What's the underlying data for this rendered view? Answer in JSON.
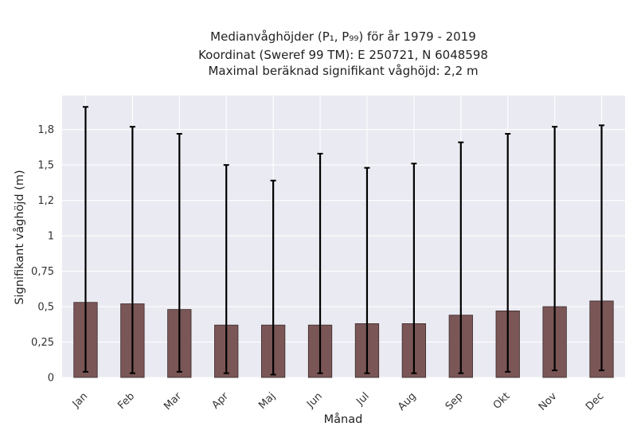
{
  "chart_data": {
    "type": "bar",
    "title_lines": [
      "Medianvåghöjder (P₁, P₉₉) för år 1979 - 2019",
      "Koordinat (Sweref 99 TM): E 250721, N 6048598",
      "Maximal beräknad signifikant våghöjd: 2,2 m"
    ],
    "xlabel": "Månad",
    "ylabel": "Signifikant våghöjd (m)",
    "categories": [
      "Jan",
      "Feb",
      "Mar",
      "Apr",
      "Maj",
      "Jun",
      "Jul",
      "Aug",
      "Sep",
      "Okt",
      "Nov",
      "Dec"
    ],
    "series": [
      {
        "values": [
          0.53,
          0.52,
          0.48,
          0.37,
          0.37,
          0.37,
          0.38,
          0.38,
          0.44,
          0.47,
          0.5,
          0.54
        ],
        "error_low": [
          0.04,
          0.03,
          0.04,
          0.03,
          0.02,
          0.03,
          0.03,
          0.03,
          0.03,
          0.04,
          0.05,
          0.05
        ],
        "error_high": [
          1.91,
          1.77,
          1.72,
          1.5,
          1.39,
          1.58,
          1.48,
          1.51,
          1.66,
          1.72,
          1.77,
          1.78
        ]
      }
    ],
    "yticks": [
      0,
      0.25,
      0.5,
      0.75,
      1,
      1.25,
      1.5,
      1.75
    ],
    "ytick_labels": [
      "0",
      "0,25",
      "0,5",
      "0,75",
      "1",
      "1,2",
      "1,5",
      "1,8"
    ],
    "ylim": [
      0,
      1.99
    ],
    "grid": true,
    "colors": {
      "bar": "#7b5656",
      "bar_edge": "#3a2a2a",
      "error": "#000000",
      "plot_bg": "#eaeaf2",
      "grid": "#ffffff"
    }
  }
}
